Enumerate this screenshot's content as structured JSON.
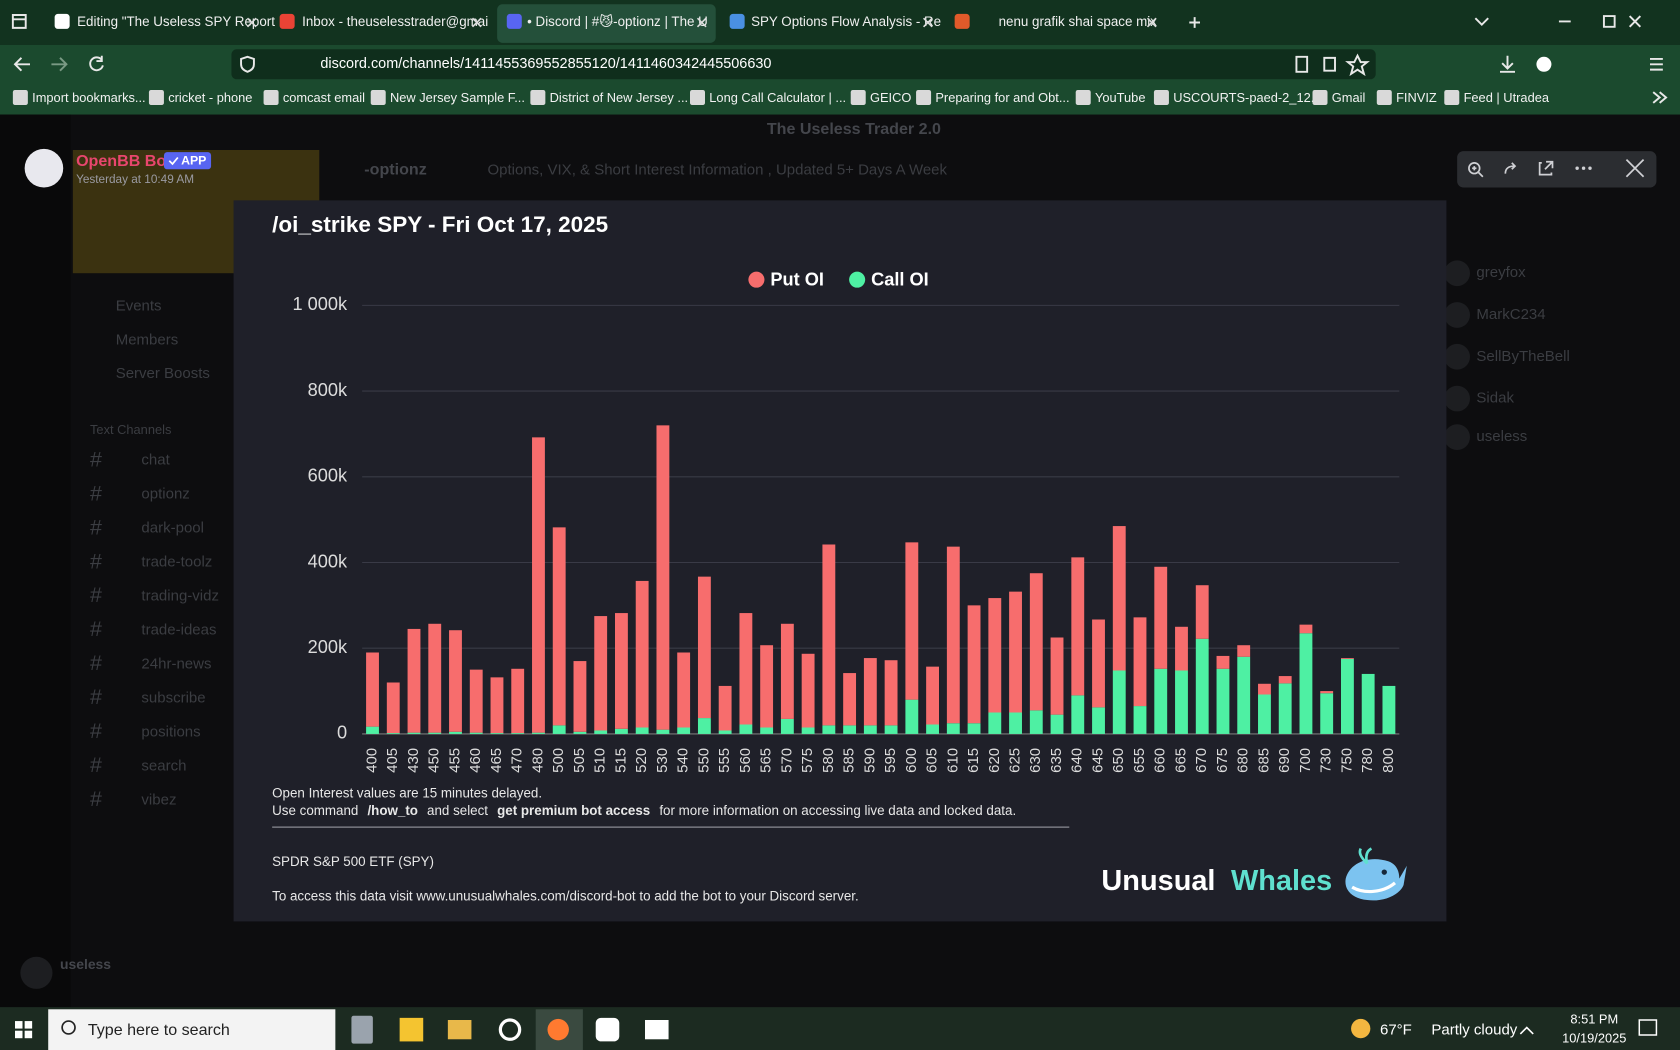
{
  "browser": {
    "tabs": [
      "Editing \"The Useless SPY Report",
      "Inbox - theuselesstrader@gmai",
      "• Discord | #😼-optionz | The U",
      "SPY Options Flow Analysis - Re",
      "nenu grafik shai space mix"
    ],
    "url": "discord.com/channels/1411455369552855120/1411460342445506630",
    "bookmarks": [
      "Import bookmarks...",
      "cricket - phone",
      "comcast email",
      "New Jersey Sample F...",
      "District of New Jersey ...",
      "Long Call Calculator | ...",
      "GEICO",
      "Preparing for and Obt...",
      "YouTube",
      "USCOURTS-paed-2_12...",
      "Gmail",
      "FINVIZ",
      "Feed | Utradea"
    ]
  },
  "discord": {
    "server_header": "The Useless Trader 2.0",
    "channel": "-optionz",
    "topic": "Options, VIX, & Short Interest Information , Updated 5+ Days A Week",
    "sidebar": [
      "Events",
      "Members",
      "Server Boosts"
    ],
    "category": "Text Channels",
    "channels": [
      "chat",
      "optionz",
      "dark-pool",
      "trade-toolz",
      "trading-vidz",
      "trade-ideas",
      "24hr-news",
      "subscribe",
      "positions",
      "search",
      "vibez"
    ],
    "members": [
      "greyfox",
      "MarkC234",
      "SellByTheBell",
      "Sidak",
      "useless"
    ],
    "user": "useless"
  },
  "message": {
    "author": "OpenBB Bot",
    "badge": "APP",
    "timestamp": "Yesterday at 10:49 AM"
  },
  "chart_data": {
    "type": "bar",
    "stacked": true,
    "title": "/oi_strike SPY - Fri Oct 17, 2025",
    "categories": [
      "400",
      "405",
      "430",
      "450",
      "455",
      "460",
      "465",
      "470",
      "480",
      "500",
      "505",
      "510",
      "515",
      "520",
      "530",
      "540",
      "550",
      "555",
      "560",
      "565",
      "570",
      "575",
      "580",
      "585",
      "590",
      "595",
      "600",
      "605",
      "610",
      "615",
      "620",
      "625",
      "630",
      "635",
      "640",
      "645",
      "650",
      "655",
      "660",
      "665",
      "670",
      "675",
      "680",
      "685",
      "690",
      "700",
      "730",
      "750",
      "780",
      "800"
    ],
    "series": [
      {
        "name": "Put OI",
        "color": "#f76d6d",
        "values": [
          173000,
          118000,
          242000,
          254000,
          237000,
          147000,
          130000,
          150000,
          689000,
          462000,
          165000,
          267000,
          270000,
          342000,
          710000,
          175000,
          330000,
          104000,
          260000,
          192000,
          222000,
          172000,
          422000,
          122000,
          157000,
          152000,
          367000,
          135000,
          412000,
          275000,
          267000,
          282000,
          320000,
          180000,
          322000,
          205000,
          337000,
          207000,
          238000,
          102000,
          125000,
          30000,
          27000,
          25000,
          17000,
          20000,
          5000,
          2000,
          0,
          0
        ]
      },
      {
        "name": "Call OI",
        "color": "#4ef0a3",
        "values": [
          17000,
          2000,
          3000,
          3000,
          5000,
          3000,
          2000,
          2000,
          3000,
          20000,
          5000,
          8000,
          12000,
          15000,
          10000,
          15000,
          37000,
          8000,
          22000,
          15000,
          35000,
          15000,
          20000,
          20000,
          20000,
          20000,
          80000,
          22000,
          25000,
          25000,
          50000,
          50000,
          55000,
          45000,
          90000,
          62000,
          148000,
          65000,
          152000,
          148000,
          222000,
          152000,
          180000,
          92000,
          118000,
          235000,
          95000,
          175000,
          140000,
          112000
        ]
      }
    ],
    "ylim": [
      0,
      1000000
    ],
    "yticks": [
      0,
      {
        "value": 200000,
        "label": "200k"
      },
      {
        "value": 400000,
        "label": "400k"
      },
      {
        "value": 600000,
        "label": "600k"
      },
      {
        "value": 800000,
        "label": "800k"
      },
      {
        "value": 1000000,
        "label": "1 000k"
      }
    ],
    "grid": true,
    "legend": "top"
  },
  "image_footer": {
    "delay_note": "Open Interest values are 15 minutes delayed.",
    "command_parts": [
      "Use command",
      "/how_to",
      "and select",
      "get premium bot access",
      "for more information on accessing live data and locked data."
    ],
    "ticker_name": "SPDR S&P 500 ETF (SPY)",
    "access_note": "To access this data visit www.unusualwhales.com/discord-bot to add the bot to your Discord server.",
    "logo": [
      "Unusual",
      "Whales"
    ]
  },
  "taskbar": {
    "search": "Type here to search",
    "weather": "67°F",
    "condition": "Partly cloudy",
    "time": "8:51 PM",
    "date": "10/19/2025"
  }
}
